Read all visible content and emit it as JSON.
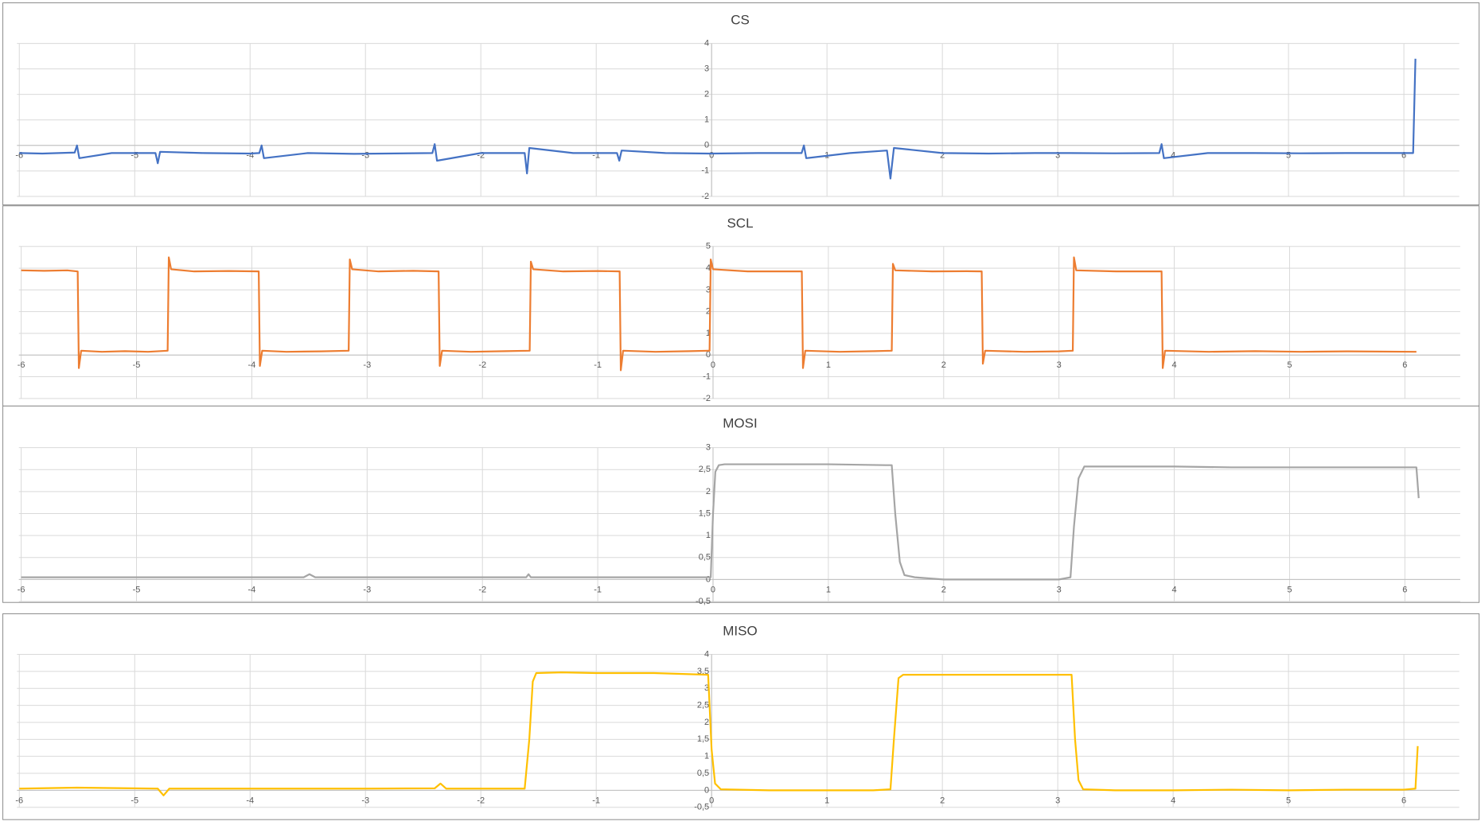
{
  "chart_data": [
    {
      "type": "line",
      "title": "CS",
      "color": "#4472c4",
      "grid": true,
      "xlim": [
        -6.02,
        6.48
      ],
      "xticks": [
        -6,
        -5,
        -4,
        -3,
        -2,
        -1,
        0,
        1,
        2,
        3,
        4,
        5,
        6
      ],
      "ylim": [
        -2,
        4
      ],
      "yticks": [
        -2,
        -1,
        0,
        1,
        2,
        3,
        4
      ],
      "x": [
        -6,
        -5.8,
        -5.52,
        -5.5,
        -5.48,
        -5.2,
        -4.82,
        -4.8,
        -4.78,
        -4.4,
        -4.0,
        -3.92,
        -3.9,
        -3.88,
        -3.5,
        -3.1,
        -2.42,
        -2.4,
        -2.38,
        -2.0,
        -1.62,
        -1.6,
        -1.58,
        -1.2,
        -0.82,
        -0.8,
        -0.78,
        -0.4,
        0,
        0.4,
        0.78,
        0.8,
        0.82,
        1.2,
        1.52,
        1.55,
        1.58,
        2.0,
        2.4,
        2.8,
        3.1,
        3.5,
        3.88,
        3.9,
        3.92,
        4.3,
        4.7,
        5.1,
        5.5,
        5.9,
        6.08,
        6.1
      ],
      "values": [
        -0.3,
        -0.32,
        -0.28,
        0.0,
        -0.5,
        -0.3,
        -0.3,
        -0.7,
        -0.25,
        -0.3,
        -0.32,
        -0.3,
        0.0,
        -0.5,
        -0.3,
        -0.33,
        -0.3,
        0.05,
        -0.6,
        -0.3,
        -0.3,
        -1.1,
        -0.1,
        -0.3,
        -0.3,
        -0.6,
        -0.2,
        -0.3,
        -0.32,
        -0.3,
        -0.3,
        0.0,
        -0.5,
        -0.3,
        -0.2,
        -1.3,
        -0.1,
        -0.3,
        -0.32,
        -0.3,
        -0.3,
        -0.31,
        -0.3,
        0.05,
        -0.5,
        -0.3,
        -0.3,
        -0.31,
        -0.3,
        -0.3,
        -0.3,
        3.4
      ]
    },
    {
      "type": "line",
      "title": "SCL",
      "color": "#ed7d31",
      "grid": true,
      "xlim": [
        -6.02,
        6.48
      ],
      "xticks": [
        -6,
        -5,
        -4,
        -3,
        -2,
        -1,
        0,
        1,
        2,
        3,
        4,
        5,
        6
      ],
      "ylim": [
        -2,
        5
      ],
      "yticks": [
        -2,
        -1,
        0,
        1,
        2,
        3,
        4,
        5
      ],
      "x": [
        -6,
        -5.8,
        -5.6,
        -5.51,
        -5.5,
        -5.48,
        -5.3,
        -5.1,
        -4.9,
        -4.73,
        -4.72,
        -4.7,
        -4.5,
        -4.2,
        -3.94,
        -3.93,
        -3.91,
        -3.7,
        -3.4,
        -3.16,
        -3.15,
        -3.13,
        -2.9,
        -2.6,
        -2.38,
        -2.37,
        -2.35,
        -2.1,
        -1.8,
        -1.59,
        -1.58,
        -1.56,
        -1.3,
        -1.0,
        -0.81,
        -0.8,
        -0.78,
        -0.5,
        -0.2,
        -0.03,
        -0.02,
        0,
        0.3,
        0.6,
        0.77,
        0.78,
        0.8,
        1.1,
        1.4,
        1.55,
        1.56,
        1.58,
        1.9,
        2.2,
        2.33,
        2.34,
        2.36,
        2.7,
        3.0,
        3.12,
        3.13,
        3.15,
        3.5,
        3.89,
        3.9,
        3.92,
        4.3,
        4.7,
        5.1,
        5.5,
        6.1
      ],
      "values": [
        3.9,
        3.88,
        3.9,
        3.85,
        -0.6,
        0.2,
        0.15,
        0.18,
        0.15,
        0.2,
        4.5,
        3.95,
        3.85,
        3.87,
        3.85,
        -0.5,
        0.2,
        0.15,
        0.17,
        0.2,
        4.4,
        3.95,
        3.85,
        3.88,
        3.85,
        -0.5,
        0.2,
        0.15,
        0.18,
        0.2,
        4.3,
        3.95,
        3.85,
        3.87,
        3.85,
        -0.7,
        0.2,
        0.15,
        0.18,
        0.2,
        4.4,
        3.95,
        3.85,
        3.85,
        3.85,
        -0.6,
        0.2,
        0.15,
        0.18,
        0.2,
        4.2,
        3.9,
        3.85,
        3.86,
        3.85,
        -0.4,
        0.2,
        0.15,
        0.17,
        0.2,
        4.5,
        3.9,
        3.85,
        3.85,
        -0.6,
        0.2,
        0.15,
        0.18,
        0.15,
        0.17,
        0.15
      ]
    },
    {
      "type": "line",
      "title": "MOSI",
      "color": "#a5a5a5",
      "grid": true,
      "xlim": [
        -6.02,
        6.48
      ],
      "xticks": [
        -6,
        -5,
        -4,
        -3,
        -2,
        -1,
        0,
        1,
        2,
        3,
        4,
        5,
        6
      ],
      "ylim": [
        -0.5,
        3
      ],
      "yticks": [
        {
          "value": -0.5,
          "label": "-0,5"
        },
        0,
        {
          "value": 0.5,
          "label": "0,5"
        },
        1,
        {
          "value": 1.5,
          "label": "1,5"
        },
        2,
        {
          "value": 2.5,
          "label": "2,5"
        },
        3
      ],
      "x": [
        -6,
        -5,
        -4,
        -3.55,
        -3.5,
        -3.45,
        -3,
        -2,
        -1.62,
        -1.6,
        -1.58,
        -1,
        -0.02,
        0,
        0.02,
        0.05,
        0.1,
        0.5,
        1.0,
        1.5,
        1.55,
        1.58,
        1.62,
        1.66,
        1.75,
        2.0,
        2.5,
        3.0,
        3.1,
        3.13,
        3.17,
        3.22,
        3.5,
        4.0,
        4.5,
        5.0,
        5.5,
        6.0,
        6.1,
        6.12
      ],
      "values": [
        0.05,
        0.05,
        0.05,
        0.05,
        0.12,
        0.05,
        0.05,
        0.05,
        0.05,
        0.12,
        0.05,
        0.05,
        0.05,
        1.5,
        2.45,
        2.6,
        2.62,
        2.62,
        2.62,
        2.6,
        2.6,
        1.5,
        0.4,
        0.1,
        0.05,
        0.0,
        0.0,
        0.0,
        0.05,
        1.2,
        2.3,
        2.57,
        2.57,
        2.57,
        2.55,
        2.55,
        2.55,
        2.55,
        2.55,
        1.85
      ]
    },
    {
      "type": "line",
      "title": "MISO",
      "color": "#ffc000",
      "grid": true,
      "xlim": [
        -6.02,
        6.48
      ],
      "xticks": [
        -6,
        -5,
        -4,
        -3,
        -2,
        -1,
        0,
        1,
        2,
        3,
        4,
        5,
        6
      ],
      "ylim": [
        -0.5,
        4
      ],
      "yticks": [
        {
          "value": -0.5,
          "label": "-0,5"
        },
        0,
        {
          "value": 0.5,
          "label": "0,5"
        },
        1,
        {
          "value": 1.5,
          "label": "1,5"
        },
        2,
        {
          "value": 2.5,
          "label": "2,5"
        },
        3,
        {
          "value": 3.5,
          "label": "3,5"
        },
        4
      ],
      "x": [
        -6,
        -5.5,
        -4.8,
        -4.75,
        -4.7,
        -4.0,
        -3.0,
        -2.4,
        -2.35,
        -2.3,
        -1.62,
        -1.58,
        -1.55,
        -1.52,
        -1.3,
        -1.0,
        -0.5,
        -0.03,
        0,
        0.03,
        0.08,
        0.5,
        1.0,
        1.4,
        1.55,
        1.58,
        1.62,
        1.66,
        2.0,
        2.5,
        3.0,
        3.12,
        3.15,
        3.18,
        3.22,
        3.5,
        4.0,
        4.5,
        5.0,
        5.5,
        6.0,
        6.1,
        6.12
      ],
      "values": [
        0.05,
        0.08,
        0.05,
        -0.15,
        0.05,
        0.05,
        0.05,
        0.06,
        0.2,
        0.05,
        0.05,
        1.5,
        3.2,
        3.45,
        3.47,
        3.45,
        3.45,
        3.4,
        1.2,
        0.2,
        0.03,
        0.0,
        0.0,
        0.0,
        0.03,
        1.5,
        3.3,
        3.4,
        3.4,
        3.4,
        3.4,
        3.4,
        1.5,
        0.3,
        0.03,
        0.0,
        0.0,
        0.02,
        0.0,
        0.02,
        0.02,
        0.05,
        1.3
      ]
    }
  ]
}
